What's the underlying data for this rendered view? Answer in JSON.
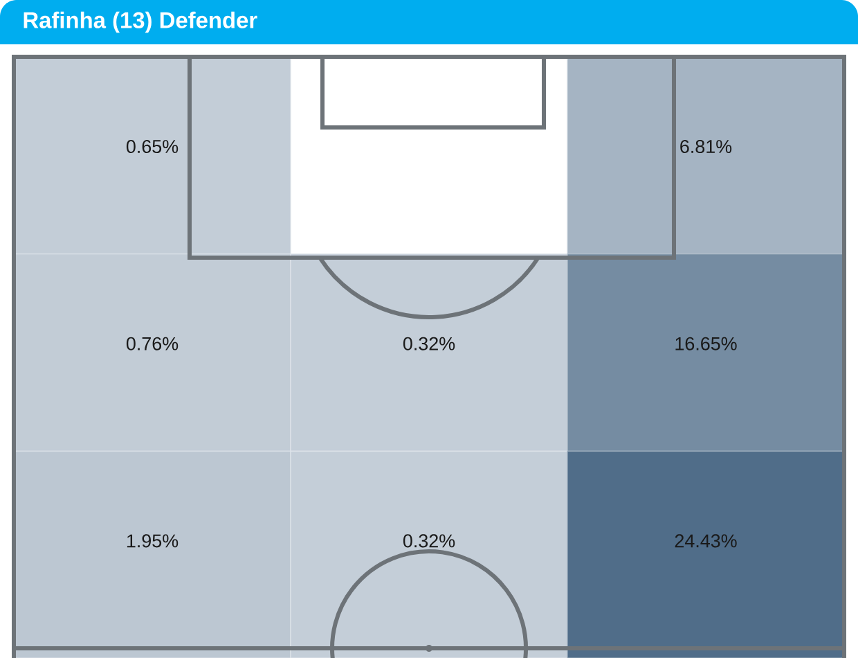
{
  "chart_data": {
    "type": "other",
    "title": "Rafinha (13) Defender",
    "categories": [
      null,
      null,
      null,
      null,
      null,
      null,
      null,
      null,
      null
    ],
    "values": [
      0.65,
      null,
      6.81,
      0.76,
      0.32,
      16.65,
      1.95,
      0.32,
      24.43
    ],
    "value_labels": [
      "0.65%",
      null,
      "6.81%",
      "0.76%",
      "0.32%",
      "16.65%",
      "1.95%",
      "0.32%",
      "24.43%"
    ]
  }
}
